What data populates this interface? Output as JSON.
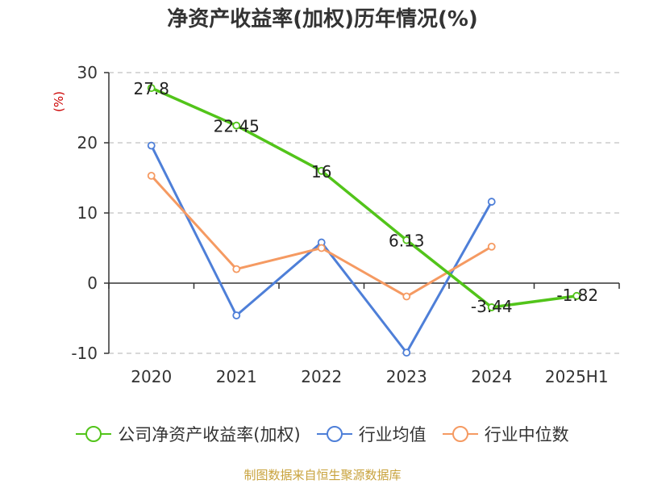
{
  "chart_data": {
    "type": "line",
    "title": "净资产收益率(加权)历年情况(%)",
    "ylabel": "(%)",
    "ylim": [
      -10,
      30
    ],
    "yticks": [
      30,
      20,
      10,
      0,
      -10
    ],
    "categories": [
      "2020",
      "2021",
      "2022",
      "2023",
      "2024",
      "2025H1"
    ],
    "series": [
      {
        "name": "公司净资产收益率(加权)",
        "color": "#52c41a",
        "values": [
          27.8,
          22.45,
          16,
          6.13,
          -3.44,
          -1.82
        ],
        "labels": [
          "27.8",
          "22.45",
          "16",
          "6.13",
          "-3.44",
          "-1.82"
        ]
      },
      {
        "name": "行业均值",
        "color": "#4e7fd8",
        "values": [
          19.6,
          -4.6,
          5.8,
          -9.9,
          11.6,
          null
        ]
      },
      {
        "name": "行业中位数",
        "color": "#f59a62",
        "values": [
          15.3,
          2.0,
          5.0,
          -1.9,
          5.2,
          null
        ]
      }
    ],
    "grid": true,
    "legend": "bottom"
  },
  "source_text": "制图数据来自恒生聚源数据库",
  "colors": {
    "title": "#333333",
    "axis": "#333333",
    "grid": "#cccccc",
    "ylabel": "#cc0000",
    "source": "#c8a23c"
  }
}
